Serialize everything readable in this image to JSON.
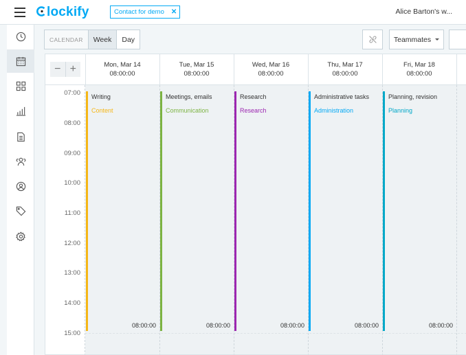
{
  "header": {
    "logo_text": "lockify",
    "demo_label": "Contact for demo",
    "demo_close": "✕",
    "user": "Alice Barton's w..."
  },
  "sidebar": {
    "items": [
      {
        "icon": "clock-icon",
        "active": false
      },
      {
        "icon": "calendar-icon",
        "active": true
      },
      {
        "icon": "dashboard-icon",
        "active": false
      },
      {
        "icon": "reports-icon",
        "active": false
      },
      {
        "icon": "projects-icon",
        "active": false
      },
      {
        "icon": "team-icon",
        "active": false
      },
      {
        "icon": "clients-icon",
        "active": false
      },
      {
        "icon": "tag-icon",
        "active": false
      },
      {
        "icon": "settings-icon",
        "active": false
      }
    ]
  },
  "toolbar": {
    "calendar_label": "CALENDAR",
    "week_label": "Week",
    "day_label": "Day",
    "teammates_label": "Teammates"
  },
  "calendar": {
    "zoom_out": "−",
    "zoom_in": "+",
    "days": [
      {
        "name": "Mon, Mar 14",
        "total": "08:00:00"
      },
      {
        "name": "Tue, Mar 15",
        "total": "08:00:00"
      },
      {
        "name": "Wed, Mar 16",
        "total": "08:00:00"
      },
      {
        "name": "Thu, Mar 17",
        "total": "08:00:00"
      },
      {
        "name": "Fri, Mar 18",
        "total": "08:00:00"
      }
    ],
    "hours": [
      "07:00",
      "08:00",
      "09:00",
      "10:00",
      "11:00",
      "12:00",
      "13:00",
      "14:00",
      "15:00"
    ],
    "entries": [
      {
        "description": "Writing",
        "project": "Content",
        "color": "#f5b615",
        "duration": "08:00:00"
      },
      {
        "description": "Meetings, emails",
        "project": "Communication",
        "color": "#7cb342",
        "duration": "08:00:00"
      },
      {
        "description": "Research",
        "project": "Research",
        "color": "#9c27b0",
        "duration": "08:00:00"
      },
      {
        "description": "Administrative tasks",
        "project": "Administration",
        "color": "#03a9f4",
        "duration": "08:00:00"
      },
      {
        "description": "Planning, revision",
        "project": "Planning",
        "color": "#00a8c8",
        "duration": "08:00:00"
      }
    ]
  }
}
